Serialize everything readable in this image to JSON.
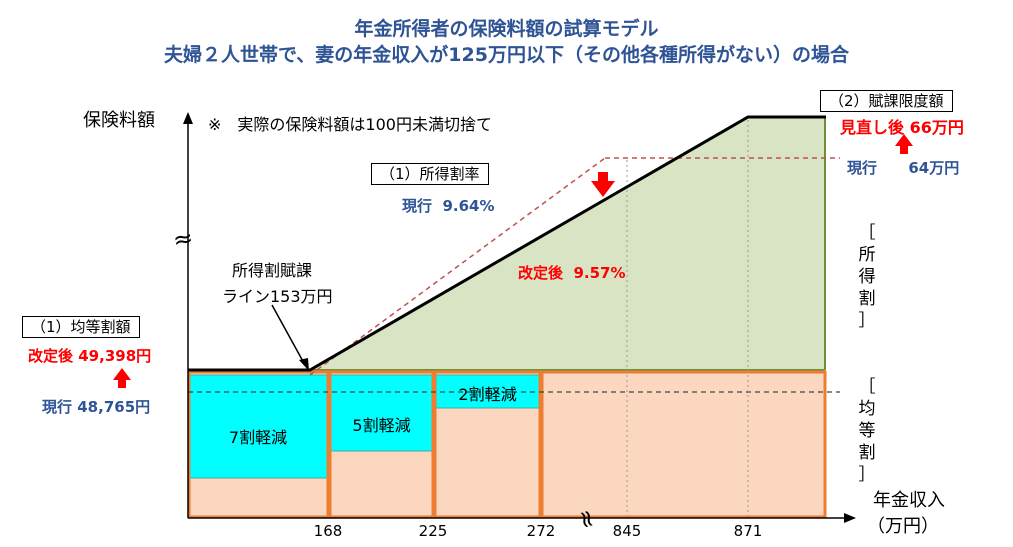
{
  "title": {
    "line1": "年金所得者の保険料額の試算モデル",
    "line2": "夫婦２人世帯で、妻の年金収入が125万円以下（その他各種所得がない）の場合"
  },
  "axes": {
    "y_label": "保険料額",
    "x_label_line1": "年金収入",
    "x_label_line2": "（万円）",
    "y_break_symbol": "≈",
    "x_break_symbol": "≈",
    "x_ticks": [
      "168",
      "225",
      "272",
      "845",
      "871"
    ]
  },
  "note": "※　実際の保険料額は100円未満切捨て",
  "equal_share": {
    "label": "（1）均等割額",
    "revised_label": "改定後",
    "revised_value": "49,398円",
    "current_label": "現行",
    "current_value": "48,765円",
    "bracket_text": [
      "［",
      "均",
      "等",
      "割",
      "］"
    ]
  },
  "income_rate": {
    "label": "（1）所得割率",
    "current_text": "現行  9.64%",
    "revised_text": "改定後  9.57%",
    "bracket_text": [
      "［",
      "所",
      "得",
      "割",
      "］"
    ]
  },
  "limit": {
    "label": "（2）賦課限度額",
    "revised_text": "見直し後  66万円",
    "current_text": "現行      64万円"
  },
  "income_line": {
    "line1": "所得割賦課",
    "line2": "ライン153万円"
  },
  "reductions": [
    "7割軽減",
    "5割軽減",
    "2割軽減"
  ],
  "colors": {
    "title": "#2f5496",
    "revised": "#ff0000",
    "income_area": "#d9e4c4",
    "income_border": "#6f8f3a",
    "equal_area": "#fbd7bf",
    "equal_border": "#ed7d31",
    "reduction": "#00ffff",
    "arrow": "#ff0000",
    "dashed": "#c0504d"
  }
}
